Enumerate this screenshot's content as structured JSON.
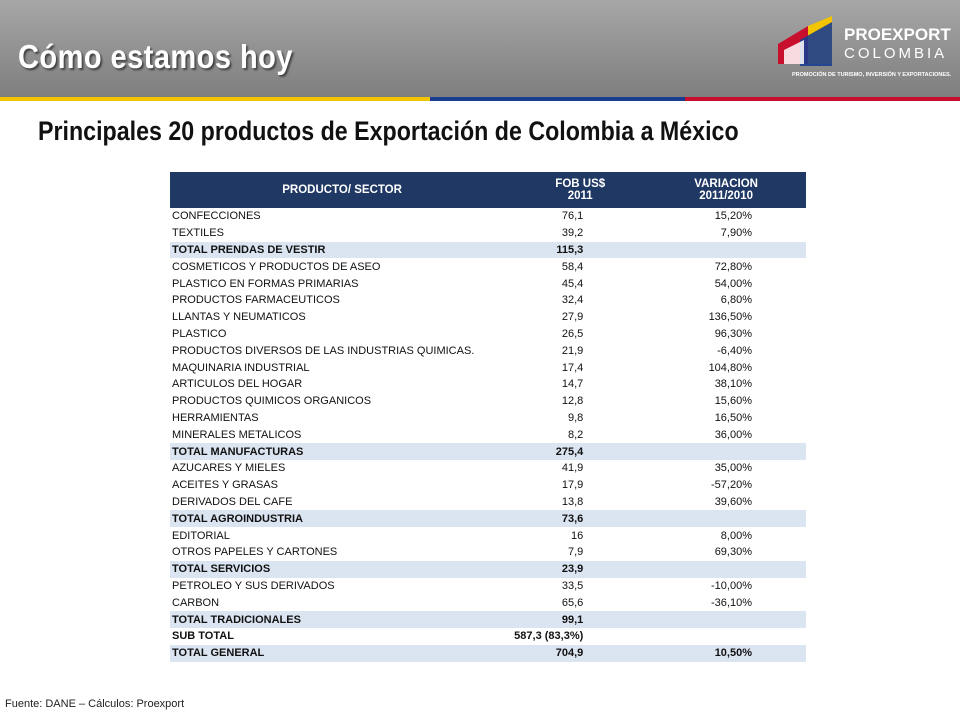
{
  "header": {
    "title": "Cómo estamos hoy"
  },
  "logo": {
    "name": "PROEXPORT",
    "country": "COLOMBIA",
    "tagline": "PROMOCIÓN DE TURISMO, INVERSIÓN Y EXPORTACIONES."
  },
  "heading": "Principales 20 productos de Exportación de Colombia a México",
  "table": {
    "columns": [
      [
        "PRODUCTO/ SECTOR"
      ],
      [
        "FOB US$",
        "2011"
      ],
      [
        "VARIACION",
        "2011/2010"
      ]
    ],
    "rows": [
      {
        "cells": [
          "CONFECCIONES",
          "76,1",
          "15,20%"
        ]
      },
      {
        "cells": [
          "TEXTILES",
          "39,2",
          "7,90%"
        ]
      },
      {
        "cells": [
          "TOTAL PRENDAS DE VESTIR",
          "115,3"
        ],
        "bold": true,
        "shaded": true
      },
      {
        "cells": [
          "COSMETICOS Y PRODUCTOS DE ASEO",
          "58,4",
          "72,80%"
        ]
      },
      {
        "cells": [
          "PLASTICO EN FORMAS PRIMARIAS",
          "45,4",
          "54,00%"
        ]
      },
      {
        "cells": [
          "PRODUCTOS FARMACEUTICOS",
          "32,4",
          "6,80%"
        ]
      },
      {
        "cells": [
          "LLANTAS Y NEUMATICOS",
          "27,9",
          "136,50%"
        ]
      },
      {
        "cells": [
          "PLASTICO",
          "26,5",
          "96,30%"
        ]
      },
      {
        "cells": [
          "PRODUCTOS DIVERSOS DE LAS INDUSTRIAS QUIMICAS.",
          "21,9",
          "-6,40%"
        ]
      },
      {
        "cells": [
          "MAQUINARIA INDUSTRIAL",
          "17,4",
          "104,80%"
        ]
      },
      {
        "cells": [
          "ARTICULOS DEL HOGAR",
          "14,7",
          "38,10%"
        ]
      },
      {
        "cells": [
          "PRODUCTOS QUIMICOS ORGANICOS",
          "12,8",
          "15,60%"
        ]
      },
      {
        "cells": [
          "HERRAMIENTAS",
          "9,8",
          "16,50%"
        ]
      },
      {
        "cells": [
          "MINERALES METALICOS",
          "8,2",
          "36,00%"
        ]
      },
      {
        "cells": [
          "TOTAL MANUFACTURAS",
          "275,4"
        ],
        "bold": true,
        "shaded": true
      },
      {
        "cells": [
          "AZUCARES Y MIELES",
          "41,9",
          "35,00%"
        ]
      },
      {
        "cells": [
          "ACEITES Y GRASAS",
          "17,9",
          "-57,20%"
        ]
      },
      {
        "cells": [
          "DERIVADOS DEL CAFE",
          "13,8",
          "39,60%"
        ]
      },
      {
        "cells": [
          "TOTAL AGROINDUSTRIA",
          "73,6"
        ],
        "bold": true,
        "shaded": true
      },
      {
        "cells": [
          "EDITORIAL",
          "16",
          "8,00%"
        ]
      },
      {
        "cells": [
          "OTROS PAPELES Y CARTONES",
          "7,9",
          "69,30%"
        ]
      },
      {
        "cells": [
          "TOTAL SERVICIOS",
          "23,9"
        ],
        "bold": true,
        "shaded": true
      },
      {
        "cells": [
          "PETROLEO Y SUS DERIVADOS",
          "33,5",
          "-10,00%"
        ]
      },
      {
        "cells": [
          "CARBON",
          "65,6",
          "-36,10%"
        ]
      },
      {
        "cells": [
          "TOTAL TRADICIONALES",
          "99,1"
        ],
        "bold": true,
        "shaded": true
      },
      {
        "cells": [
          "SUB TOTAL",
          "587,3 (83,3%)"
        ],
        "bold": true
      },
      {
        "cells": [
          "TOTAL GENERAL",
          "704,9",
          "10,50%"
        ],
        "bold": true,
        "shaded": true
      }
    ]
  },
  "footer": "Fuente: DANE – Cálculos: Proexport"
}
